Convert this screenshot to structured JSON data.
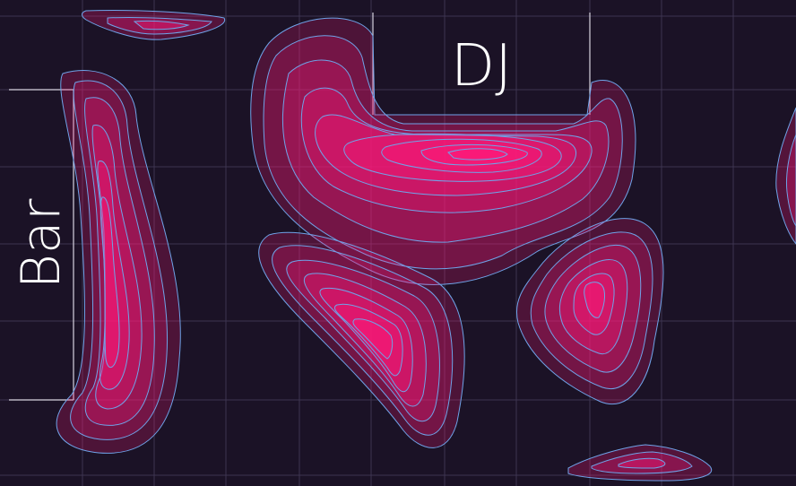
{
  "labels": {
    "dj": "DJ",
    "bar": "Bar"
  },
  "colors": {
    "background": "#1b1226",
    "grid": "#3e3450",
    "contour_line": "#6fa3e8",
    "density_low": "#5a2a5a",
    "density_high": "#ff1a7a",
    "label": "#ffffff",
    "zone_outline": "#d8d4e0"
  }
}
